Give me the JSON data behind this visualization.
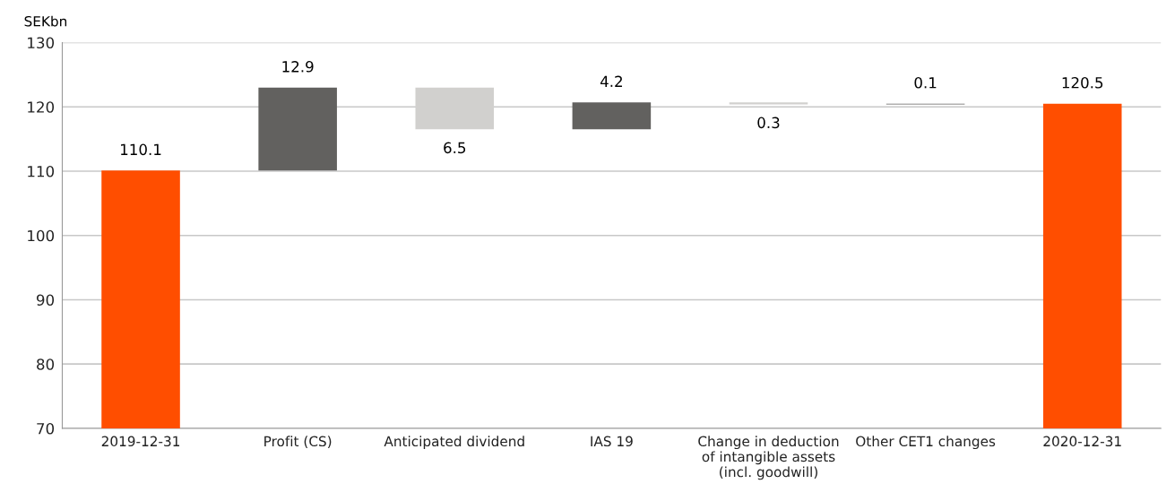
{
  "chart_data": {
    "type": "bar",
    "ylabel": "SEKbn",
    "categories": [
      "2019-12-31",
      "Profit (CS)",
      "Anticipated dividend",
      "IAS 19",
      "Change in deduction\nof intangible assets\n(incl. goodwill)",
      "Other CET1 changes",
      "2020-12-31"
    ],
    "base": [
      70,
      110.1,
      123.0,
      116.5,
      120.7,
      120.4,
      70
    ],
    "values": [
      40.1,
      12.9,
      -6.5,
      4.2,
      -0.3,
      0.1,
      50.5
    ],
    "value_labels": [
      "110.1",
      "12.9",
      "6.5",
      "4.2",
      "0.3",
      "0.1",
      "120.5"
    ],
    "colors": [
      "#ff4e00",
      "#62615f",
      "#d1d0ce",
      "#62615f",
      "#d1d0ce",
      "#62615f",
      "#ff4e00"
    ],
    "ylim": [
      70,
      130
    ],
    "yticks": [
      70,
      80,
      90,
      100,
      110,
      120,
      130
    ],
    "grid": "y"
  }
}
